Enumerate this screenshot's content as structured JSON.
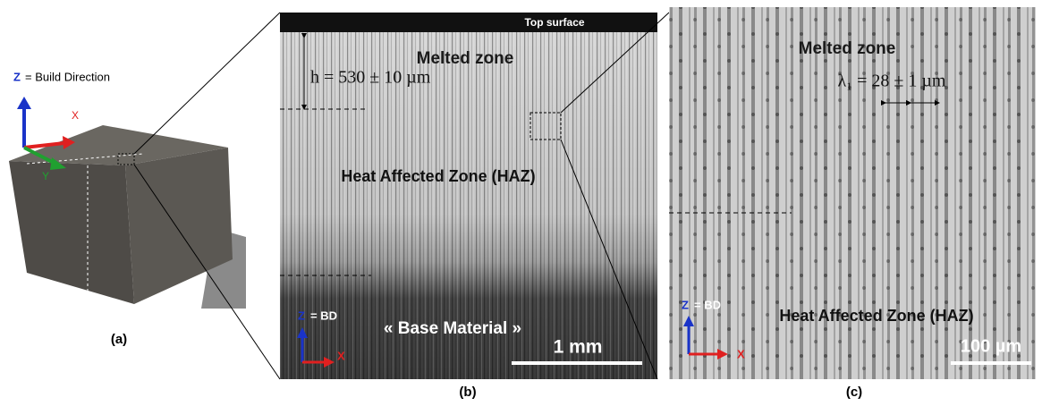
{
  "panel_a": {
    "z_axis": "Z",
    "z_caption": "= Build Direction",
    "x_axis": "X",
    "y_axis": "Y",
    "label": "(a)"
  },
  "panel_b": {
    "top": "Top surface",
    "melted": "Melted zone",
    "thickness": "h = 530 ± 10 µm",
    "haz": "Heat Affected Zone (HAZ)",
    "z_axis": "Z",
    "z_caption": "= BD",
    "x_axis": "X",
    "base": "« Base Material »",
    "scale": "1 mm",
    "label": "(b)"
  },
  "panel_c": {
    "melted": "Melted zone",
    "spacing": "λ₁ = 28 ± 1 µm",
    "z_axis": "Z",
    "z_caption": "= BD",
    "haz": "Heat Affected Zone (HAZ)",
    "x_axis": "X",
    "scale": "100 µm",
    "label": "(c)"
  }
}
